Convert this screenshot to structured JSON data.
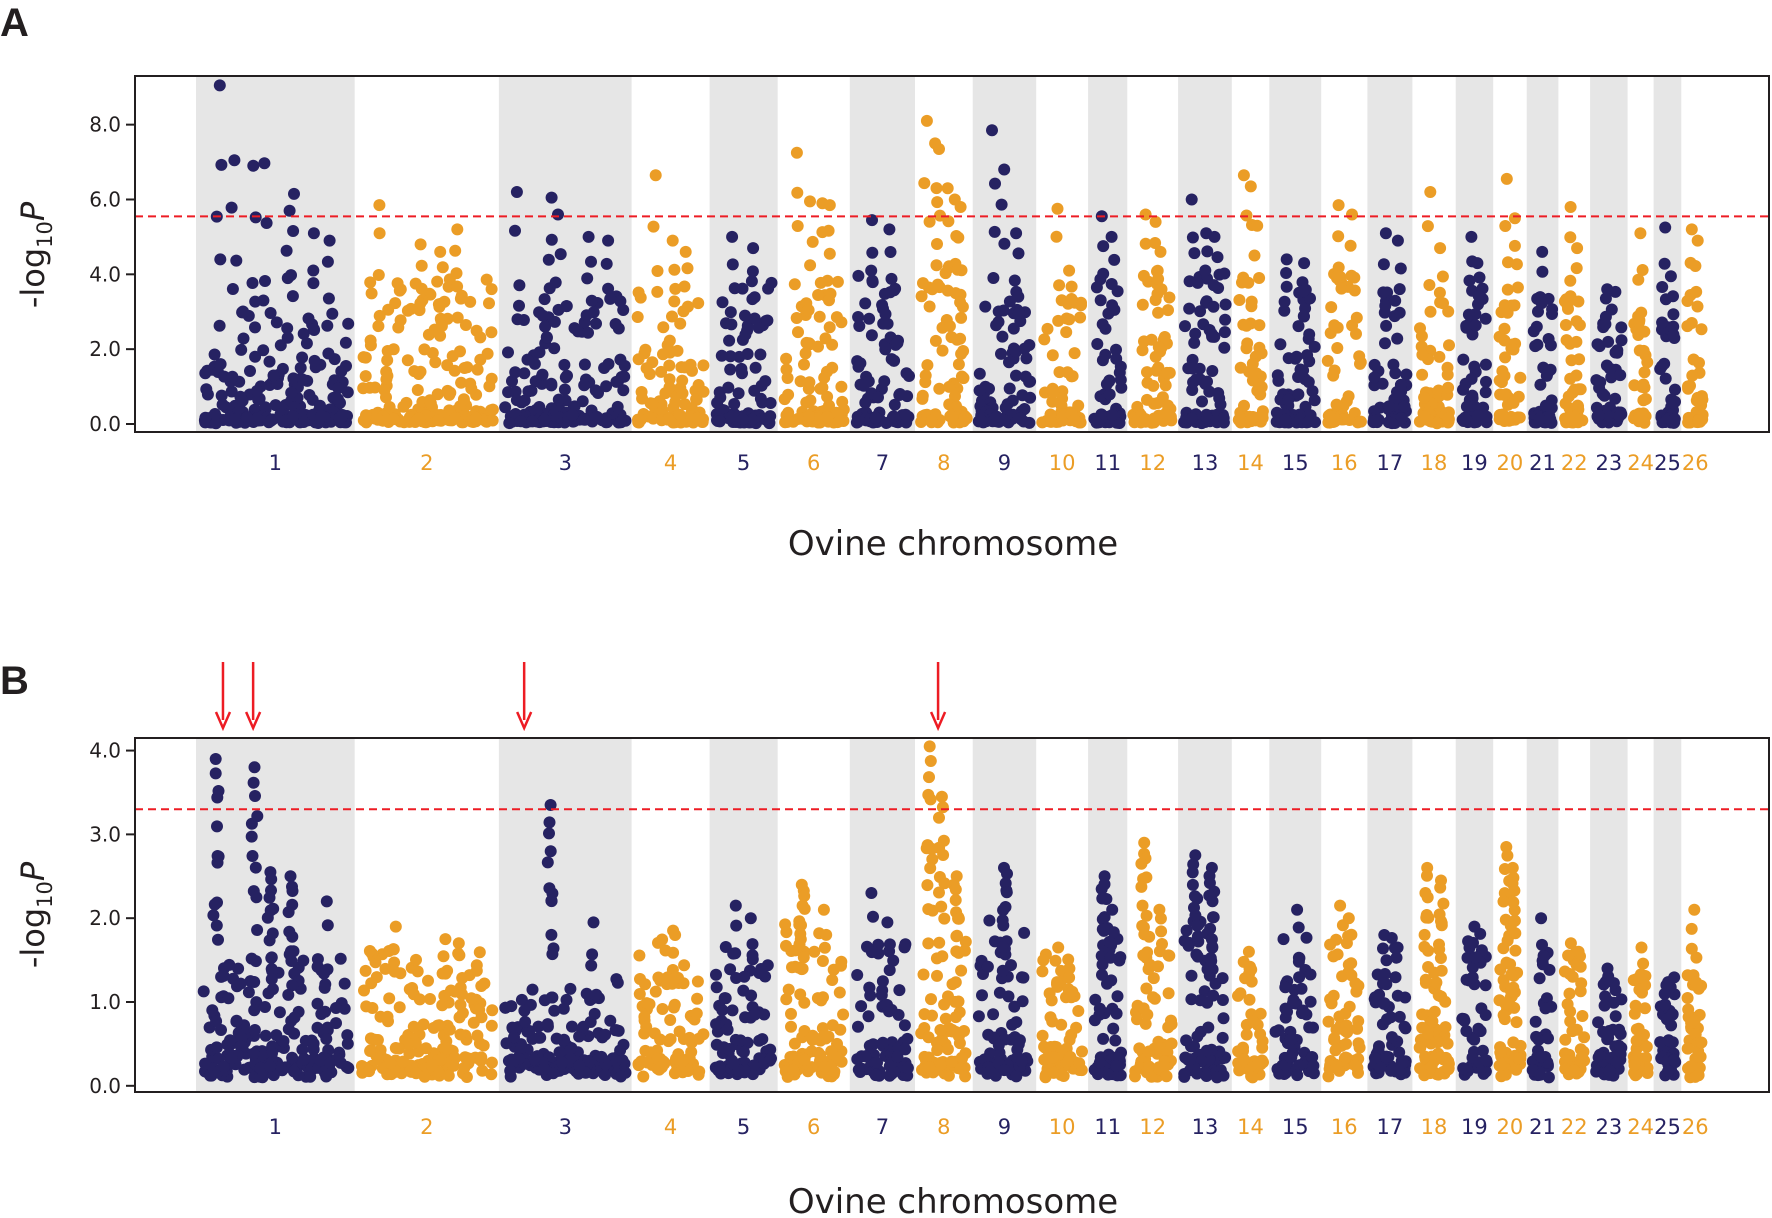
{
  "colors": {
    "navy": "#262262",
    "orange": "#eb9d26",
    "shade": "#e6e6e6",
    "threshold": "#ed1c24",
    "arrow": "#ed1c24",
    "frame": "#231f20"
  },
  "chart_data": [
    {
      "panel": "A",
      "type": "scatter",
      "subtype": "manhattan",
      "xlabel": "Ovine chromosome",
      "ylabel": {
        "prefix": "-log",
        "subscript": "10",
        "suffix": "P"
      },
      "ylim": [
        0,
        9.3
      ],
      "yticks": [
        "0.0",
        "2.0",
        "4.0",
        "6.0",
        "8.0"
      ],
      "ytick_values": [
        0,
        2,
        4,
        6,
        8
      ],
      "threshold": 5.55,
      "chromosomes": [
        {
          "label": "1",
          "length": 275,
          "base": 3.0,
          "peaks": [
            9.05,
            7.05,
            6.9,
            6.97,
            6.15,
            5.7,
            5.1,
            4.9
          ]
        },
        {
          "label": "2",
          "length": 250,
          "base": 3.9,
          "peaks": [
            5.85,
            4.8,
            4.6,
            5.2
          ]
        },
        {
          "label": "3",
          "length": 230,
          "base": 3.4,
          "peaks": [
            6.2,
            6.05,
            5.6,
            5.0,
            4.9
          ]
        },
        {
          "label": "4",
          "length": 135,
          "base": 3.5,
          "peaks": [
            6.65,
            4.9,
            4.6
          ]
        },
        {
          "label": "5",
          "length": 118,
          "base": 3.8,
          "peaks": [
            5.0,
            4.7
          ]
        },
        {
          "label": "6",
          "length": 125,
          "base": 3.8,
          "peaks": [
            7.25,
            5.95,
            5.9,
            5.85
          ]
        },
        {
          "label": "7",
          "length": 113,
          "base": 4.0,
          "peaks": [
            5.45,
            5.2
          ]
        },
        {
          "label": "8",
          "length": 100,
          "base": 4.2,
          "peaks": [
            8.1,
            7.5,
            7.35,
            6.3,
            6.0,
            5.8
          ]
        },
        {
          "label": "9",
          "length": 110,
          "base": 3.5,
          "peaks": [
            7.85,
            6.8,
            5.1
          ]
        },
        {
          "label": "10",
          "length": 90,
          "base": 3.5,
          "peaks": [
            5.75,
            4.1
          ]
        },
        {
          "label": "11",
          "length": 68,
          "base": 4.0,
          "peaks": [
            5.55,
            5.0
          ]
        },
        {
          "label": "12",
          "length": 88,
          "base": 4.2,
          "peaks": [
            5.6,
            5.4,
            4.6
          ]
        },
        {
          "label": "13",
          "length": 93,
          "base": 4.0,
          "peaks": [
            6.0,
            5.1,
            5.0
          ]
        },
        {
          "label": "14",
          "length": 65,
          "base": 3.4,
          "peaks": [
            6.65,
            6.35,
            5.3
          ]
        },
        {
          "label": "15",
          "length": 90,
          "base": 3.7,
          "peaks": [
            4.4,
            4.3
          ]
        },
        {
          "label": "16",
          "length": 80,
          "base": 4.2,
          "peaks": [
            5.85,
            5.6
          ]
        },
        {
          "label": "17",
          "length": 78,
          "base": 3.5,
          "peaks": [
            5.1,
            4.9
          ]
        },
        {
          "label": "18",
          "length": 75,
          "base": 3.3,
          "peaks": [
            6.2,
            4.7
          ]
        },
        {
          "label": "19",
          "length": 65,
          "base": 3.6,
          "peaks": [
            5.0,
            4.3
          ]
        },
        {
          "label": "20",
          "length": 58,
          "base": 3.8,
          "peaks": [
            6.55,
            5.5
          ]
        },
        {
          "label": "21",
          "length": 55,
          "base": 3.4,
          "peaks": [
            4.6
          ]
        },
        {
          "label": "22",
          "length": 55,
          "base": 3.5,
          "peaks": [
            5.8,
            4.7
          ]
        },
        {
          "label": "23",
          "length": 65,
          "base": 3.5,
          "peaks": [
            3.6
          ]
        },
        {
          "label": "24",
          "length": 45,
          "base": 3.0,
          "peaks": [
            5.1
          ]
        },
        {
          "label": "25",
          "length": 48,
          "base": 3.0,
          "peaks": [
            5.25,
            3.95
          ]
        },
        {
          "label": "26",
          "length": 48,
          "base": 3.3,
          "peaks": [
            5.2,
            4.9
          ]
        }
      ]
    },
    {
      "panel": "B",
      "type": "scatter",
      "subtype": "manhattan",
      "xlabel": "Ovine chromosome",
      "ylabel": {
        "prefix": "-log",
        "subscript": "10",
        "suffix": "P"
      },
      "ylim": [
        -0.05,
        4.15
      ],
      "yticks": [
        "0.0",
        "1.0",
        "2.0",
        "3.0",
        "4.0"
      ],
      "ytick_values": [
        0,
        1,
        2,
        3,
        4
      ],
      "threshold": 3.3,
      "arrows_at_chromosome_position": [
        {
          "chromosome": "1",
          "fraction": 0.17
        },
        {
          "chromosome": "1",
          "fraction": 0.36
        },
        {
          "chromosome": "3",
          "fraction": 0.19
        },
        {
          "chromosome": "8",
          "fraction": 0.4
        }
      ],
      "chromosomes": [
        {
          "label": "1",
          "length": 275,
          "base": 1.3,
          "peaks": [
            3.9,
            3.8,
            2.55,
            2.5,
            2.2
          ]
        },
        {
          "label": "2",
          "length": 250,
          "base": 1.5,
          "peaks": [
            1.9,
            1.75
          ]
        },
        {
          "label": "3",
          "length": 230,
          "base": 1.1,
          "peaks": [
            3.35,
            1.95
          ]
        },
        {
          "label": "4",
          "length": 135,
          "base": 1.6,
          "peaks": [
            1.8
          ]
        },
        {
          "label": "5",
          "length": 118,
          "base": 1.5,
          "peaks": [
            2.15,
            2.0
          ]
        },
        {
          "label": "6",
          "length": 125,
          "base": 1.7,
          "peaks": [
            2.4,
            2.1
          ]
        },
        {
          "label": "7",
          "length": 113,
          "base": 1.6,
          "peaks": [
            2.3,
            1.95
          ]
        },
        {
          "label": "8",
          "length": 100,
          "base": 1.6,
          "peaks": [
            4.05,
            3.45,
            2.5
          ]
        },
        {
          "label": "9",
          "length": 110,
          "base": 1.8,
          "peaks": [
            2.6
          ]
        },
        {
          "label": "10",
          "length": 90,
          "base": 1.4,
          "peaks": [
            1.65,
            1.4
          ]
        },
        {
          "label": "11",
          "length": 68,
          "base": 1.8,
          "peaks": [
            2.5,
            2.1
          ]
        },
        {
          "label": "12",
          "length": 88,
          "base": 1.8,
          "peaks": [
            2.9,
            2.1
          ]
        },
        {
          "label": "13",
          "length": 93,
          "base": 1.8,
          "peaks": [
            2.75,
            2.6
          ]
        },
        {
          "label": "14",
          "length": 65,
          "base": 1.3,
          "peaks": [
            1.6
          ]
        },
        {
          "label": "15",
          "length": 90,
          "base": 1.6,
          "peaks": [
            2.1
          ]
        },
        {
          "label": "16",
          "length": 80,
          "base": 1.7,
          "peaks": [
            2.15,
            2.0
          ]
        },
        {
          "label": "17",
          "length": 78,
          "base": 1.5,
          "peaks": [
            1.8,
            1.65
          ]
        },
        {
          "label": "18",
          "length": 75,
          "base": 1.1,
          "peaks": [
            2.6,
            2.45
          ]
        },
        {
          "label": "19",
          "length": 65,
          "base": 1.6,
          "peaks": [
            1.9
          ]
        },
        {
          "label": "20",
          "length": 58,
          "base": 1.4,
          "peaks": [
            2.85,
            2.6
          ]
        },
        {
          "label": "21",
          "length": 55,
          "base": 1.4,
          "peaks": [
            2.0
          ]
        },
        {
          "label": "22",
          "length": 55,
          "base": 1.4,
          "peaks": [
            1.7,
            1.6
          ]
        },
        {
          "label": "23",
          "length": 65,
          "base": 1.2,
          "peaks": [
            1.4
          ]
        },
        {
          "label": "24",
          "length": 45,
          "base": 1.2,
          "peaks": [
            1.65
          ]
        },
        {
          "label": "25",
          "length": 48,
          "base": 1.1,
          "peaks": [
            1.2
          ]
        },
        {
          "label": "26",
          "length": 48,
          "base": 1.6,
          "peaks": [
            2.1
          ]
        }
      ]
    }
  ]
}
